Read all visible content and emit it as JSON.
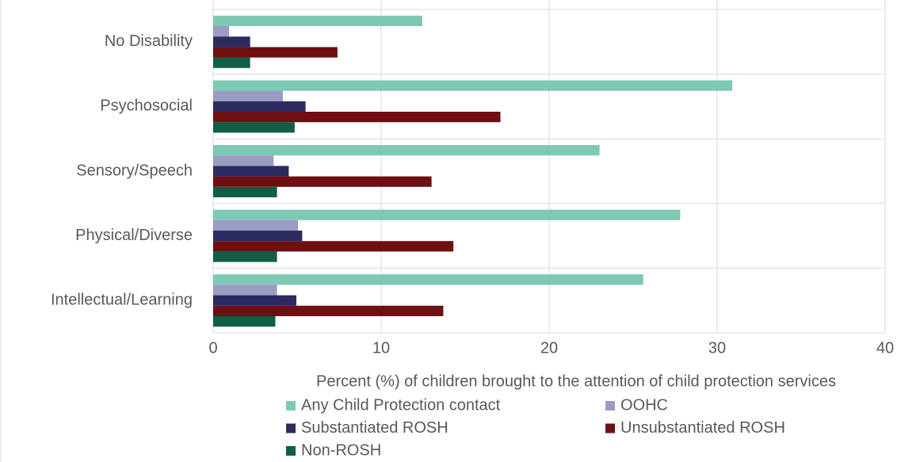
{
  "chart_data": {
    "type": "hbar",
    "x_label": "Percent (%) of children brought to the attention of child protection services",
    "categories": [
      "No Disability",
      "Psychosocial",
      "Sensory/Speech",
      "Physical/Diverse",
      "Intellectual/Learning"
    ],
    "series": [
      {
        "name": "Any Child Protection contact",
        "color": "#7dc9b6",
        "values": [
          12.45,
          30.9,
          23.0,
          27.8,
          25.6
        ]
      },
      {
        "name": "OOHC",
        "color": "#9b9bc3",
        "values": [
          0.95,
          4.15,
          3.6,
          5.05,
          3.8
        ]
      },
      {
        "name": "Substantiated ROSH",
        "color": "#2b2b62",
        "values": [
          2.2,
          5.5,
          4.5,
          5.3,
          4.95
        ]
      },
      {
        "name": "Unsubstantiated ROSH",
        "color": "#6e0f12",
        "values": [
          7.4,
          17.1,
          13.0,
          14.3,
          13.7
        ]
      },
      {
        "name": "Non-ROSH",
        "color": "#0f5e45",
        "values": [
          2.2,
          4.85,
          3.8,
          3.8,
          3.7
        ]
      }
    ],
    "xlim": [
      0,
      40
    ],
    "xticks": [
      0,
      10,
      20,
      30,
      40
    ],
    "grid": true,
    "legend": "bottom"
  }
}
